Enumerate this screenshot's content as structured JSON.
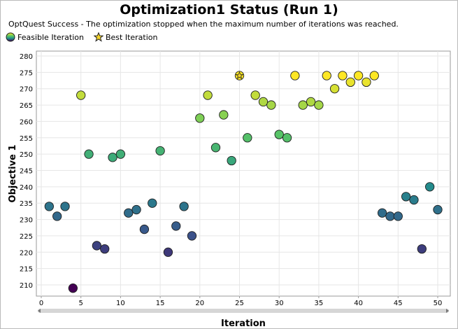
{
  "window": {
    "title": "Optimization1 Status (Run 1)"
  },
  "status_message": "OptQuest Success - The optimization stopped when the maximum number of iterations was reached.",
  "legend": {
    "feasible_label": "Feasible Iteration",
    "best_label": "Best Iteration"
  },
  "colors": {
    "palette": "viridis",
    "best_star": "#f5d52b",
    "grid": "#e6e6e6",
    "scrollbar": "#cfcfcf"
  },
  "chart_data": {
    "type": "scatter",
    "title": "Optimization1 Status (Run 1)",
    "xlabel": "Iteration",
    "ylabel": "Objective 1",
    "xlim": [
      0,
      51
    ],
    "ylim": [
      205,
      280
    ],
    "xticks": [
      0,
      5,
      10,
      15,
      20,
      25,
      30,
      35,
      40,
      45,
      50
    ],
    "yticks": [
      210,
      215,
      220,
      225,
      230,
      235,
      240,
      245,
      250,
      255,
      260,
      265,
      270,
      275,
      280
    ],
    "grid": true,
    "legend_position": "top-left",
    "color_scale": "viridis",
    "color_range": [
      209,
      274
    ],
    "best_iteration": 25,
    "series": [
      {
        "name": "Feasible Iteration",
        "x": [
          1,
          2,
          3,
          4,
          5,
          6,
          7,
          8,
          9,
          10,
          11,
          12,
          13,
          14,
          15,
          16,
          17,
          18,
          19,
          20,
          21,
          22,
          23,
          24,
          25,
          26,
          27,
          28,
          29,
          30,
          31,
          32,
          33,
          34,
          35,
          36,
          37,
          38,
          39,
          40,
          41,
          42,
          43,
          44,
          45,
          46,
          47,
          48,
          49,
          50
        ],
        "y": [
          234,
          231,
          234,
          209,
          268,
          250,
          222,
          221,
          249,
          250,
          232,
          233,
          227,
          235,
          251,
          220,
          228,
          234,
          225,
          261,
          268,
          252,
          262,
          248,
          274,
          255,
          268,
          266,
          265,
          256,
          255,
          274,
          265,
          266,
          265,
          274,
          270,
          274,
          272,
          274,
          272,
          274,
          232,
          231,
          231,
          237,
          236,
          221,
          240,
          233
        ]
      }
    ]
  }
}
